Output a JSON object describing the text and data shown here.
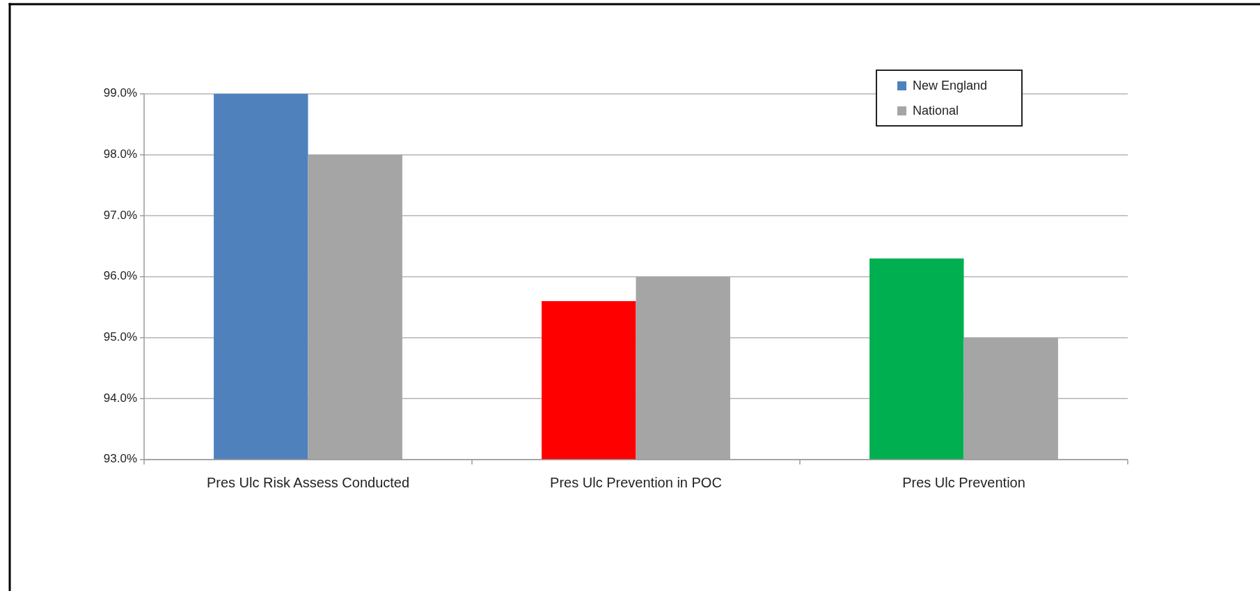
{
  "chart_data": {
    "type": "bar",
    "categories": [
      "Pres Ulc Risk Assess Conducted",
      "Pres Ulc Prevention in POC",
      "Pres Ulc Prevention"
    ],
    "series": [
      {
        "name": "New England",
        "color": "#4f81bd",
        "colors": [
          "#4f81bd",
          "#ff0000",
          "#00b050"
        ],
        "values": [
          99.0,
          95.6,
          96.3
        ]
      },
      {
        "name": "National",
        "color": "#a5a5a5",
        "values": [
          98.0,
          96.0,
          95.0
        ]
      }
    ],
    "ylim": [
      93,
      99
    ],
    "yticks": [
      {
        "value": 93,
        "label": "93.0%"
      },
      {
        "value": 94,
        "label": "94.0%"
      },
      {
        "value": 95,
        "label": "95.0%"
      },
      {
        "value": 96,
        "label": "96.0%"
      },
      {
        "value": 97,
        "label": "97.0%"
      },
      {
        "value": 98,
        "label": "98.0%"
      },
      {
        "value": 99,
        "label": "99.0%"
      }
    ],
    "grid": "y",
    "legend": "top right"
  }
}
